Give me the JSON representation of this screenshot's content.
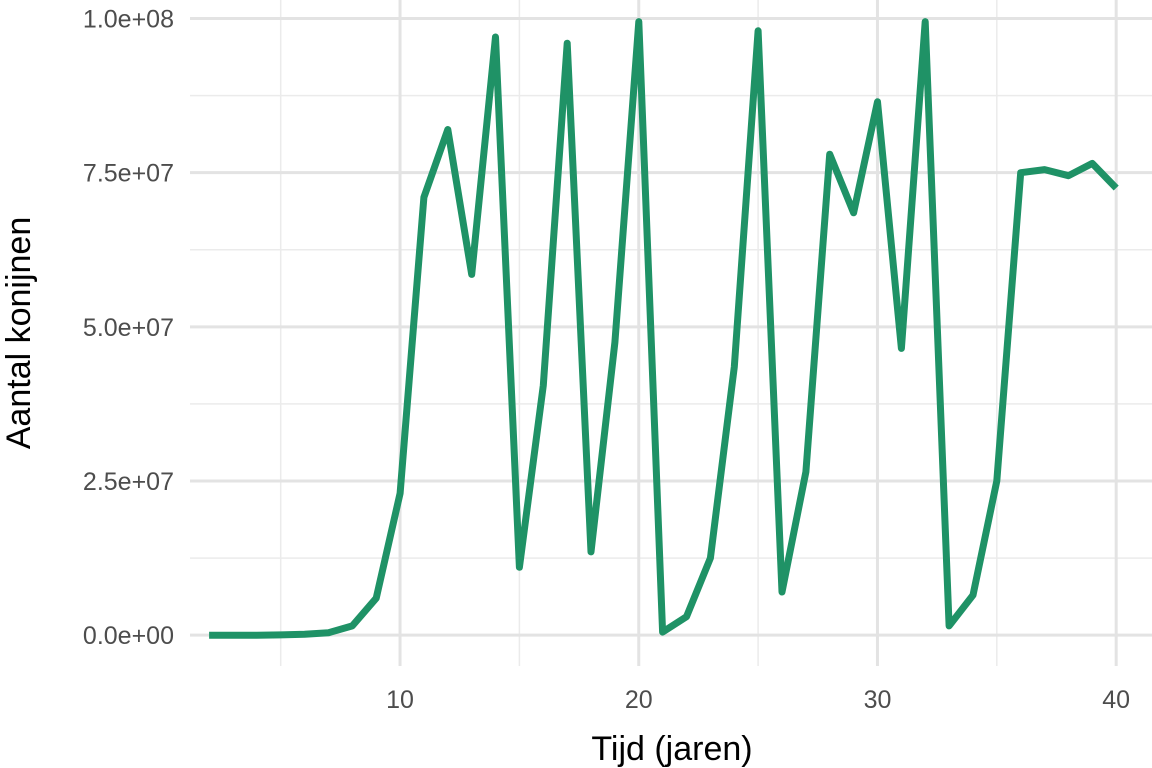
{
  "chart_data": {
    "type": "line",
    "title": "",
    "xlabel": "Tijd (jaren)",
    "ylabel": "Aantal konijnen",
    "xlim": [
      1.2,
      41.5
    ],
    "ylim": [
      -5000000,
      103000000
    ],
    "x_ticks": [
      10,
      20,
      30,
      40
    ],
    "x_tick_labels": [
      "10",
      "20",
      "30",
      "40"
    ],
    "x_minor_ticks": [
      5,
      15,
      25,
      35
    ],
    "y_ticks": [
      0,
      25000000,
      50000000,
      75000000,
      100000000
    ],
    "y_tick_labels": [
      "0.0e+00",
      "2.5e+07",
      "5.0e+07",
      "7.5e+07",
      "1.0e+08"
    ],
    "y_minor_ticks": [
      12500000,
      37500000,
      62500000,
      87500000
    ],
    "grid": true,
    "legend": "none",
    "series": [
      {
        "color": "#1f9266",
        "x": [
          2,
          3,
          4,
          5,
          6,
          7,
          8,
          9,
          10,
          11,
          12,
          13,
          14,
          15,
          16,
          17,
          18,
          19,
          20,
          21,
          22,
          23,
          24,
          25,
          26,
          27,
          28,
          29,
          30,
          31,
          32,
          33,
          34,
          35,
          36,
          37,
          38,
          39,
          40
        ],
        "values": [
          0,
          0,
          0,
          50000,
          150000,
          400000,
          1500000,
          6000000,
          23000000,
          71000000,
          82000000,
          58500000,
          97000000,
          11000000,
          40500000,
          96000000,
          13500000,
          47500000,
          99500000,
          500000,
          3000000,
          12500000,
          43500000,
          98000000,
          7000000,
          26500000,
          78000000,
          68500000,
          86500000,
          46500000,
          99500000,
          1500000,
          6500000,
          25000000,
          75000000,
          75500000,
          74500000,
          76500000,
          72500000
        ]
      }
    ]
  }
}
